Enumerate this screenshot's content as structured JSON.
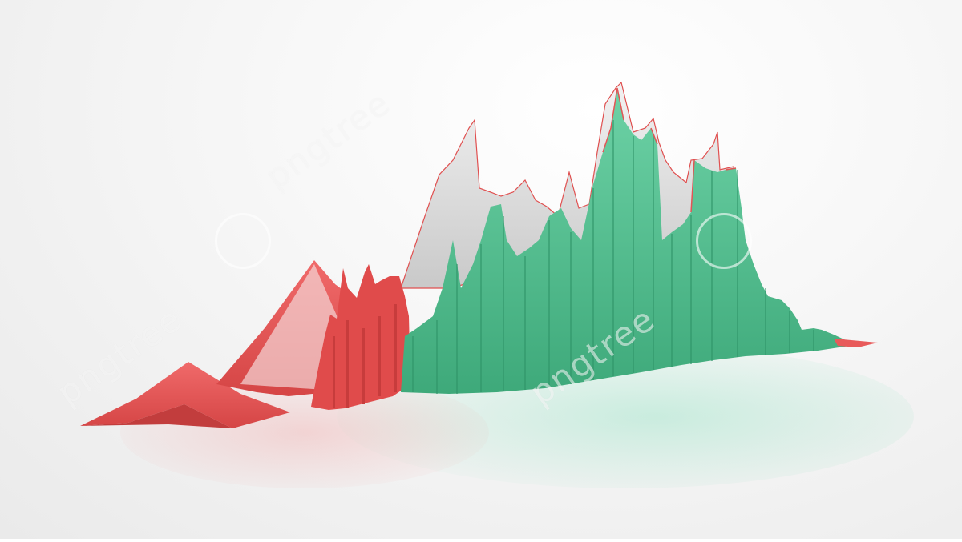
{
  "image": {
    "subject": "3d-line-chart-sculpture",
    "colors": {
      "red": "#e85a5a",
      "red_dark": "#d94747",
      "green": "#5cc79a",
      "green_dark": "#3fb07f",
      "floor": "#f1f1f1",
      "background": "#f6f6f6"
    },
    "watermark": {
      "text": "pngtree",
      "texts": [
        "pngtree",
        "pngtree",
        "pngtree"
      ]
    }
  }
}
